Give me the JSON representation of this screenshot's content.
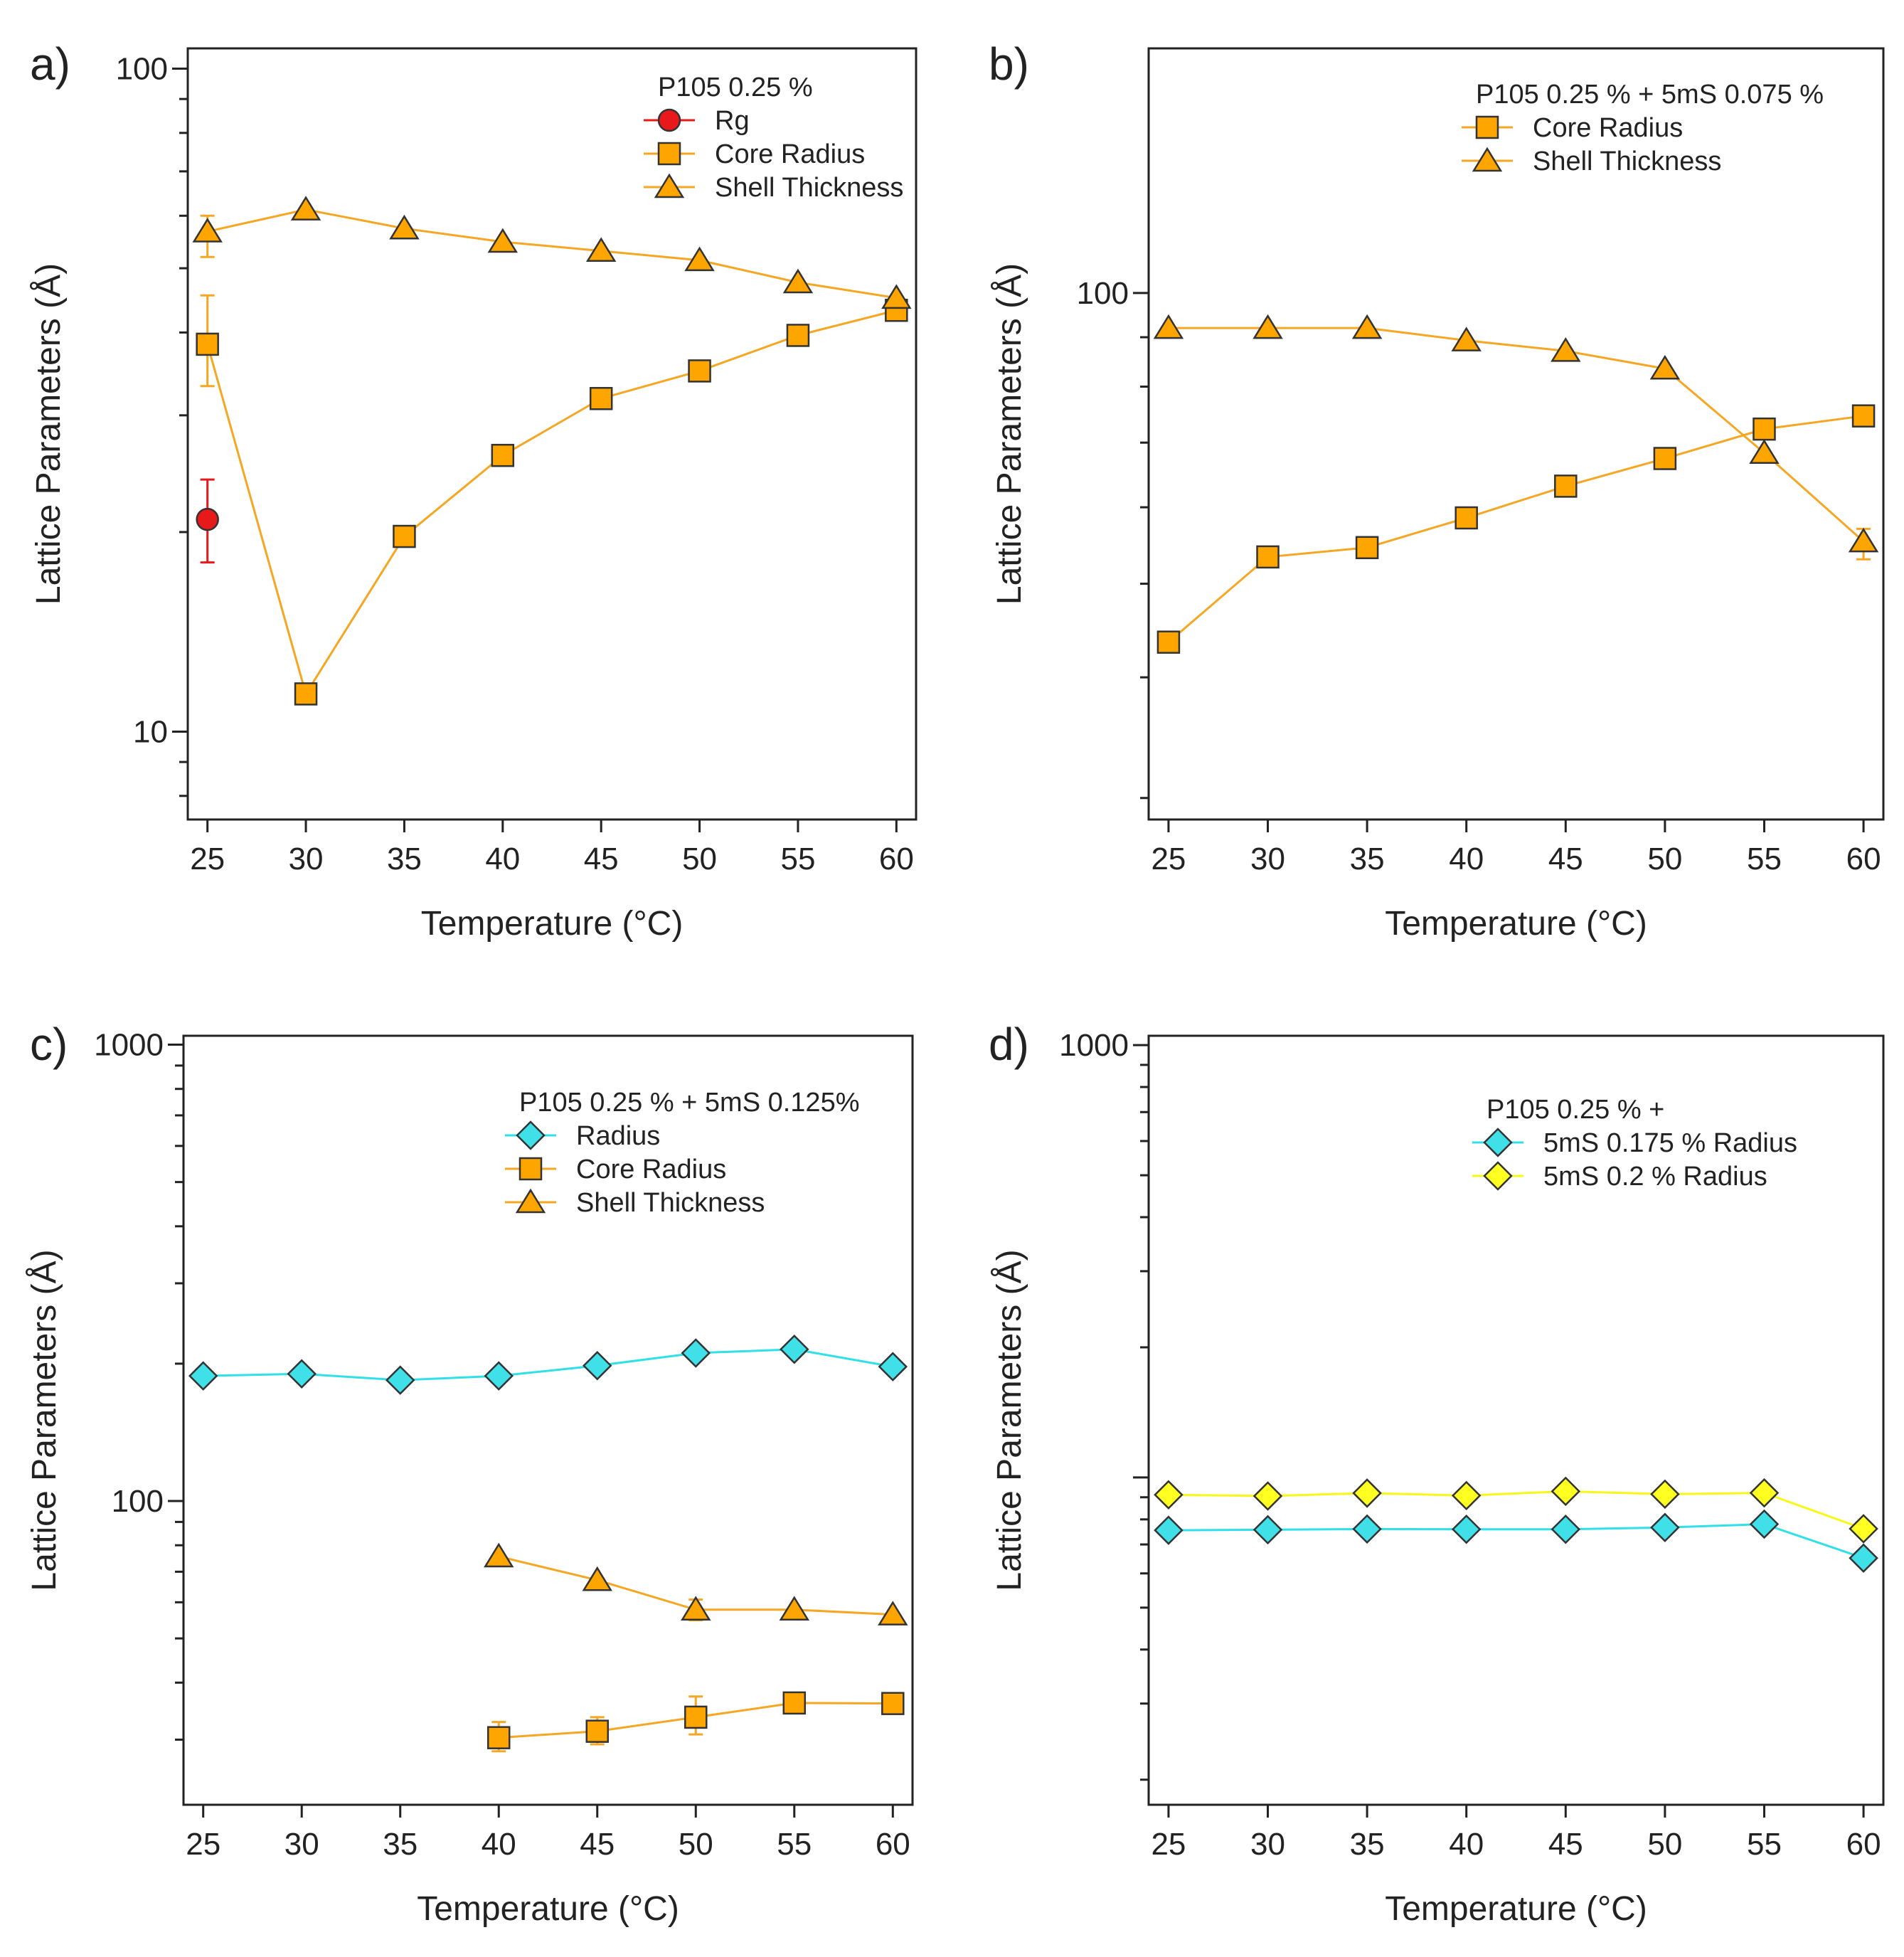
{
  "figure": {
    "title": "",
    "panels": [
      {
        "label": "a)",
        "xlabel": "Temperature (°C)",
        "ylabel": "Lattice Parameters (Å)",
        "legend_title": "P105 0.25 %"
      },
      {
        "label": "b)",
        "xlabel": "Temperature (°C)",
        "ylabel": "Lattice Parameters (Å)",
        "legend_title": "P105 0.25 % + 5mS 0.075 %"
      },
      {
        "label": "c)",
        "xlabel": "Temperature (°C)",
        "ylabel": "Lattice Parameters (Å)",
        "legend_title": "P105 0.25 % + 5mS 0.125%"
      },
      {
        "label": "d)",
        "xlabel": "Temperature (°C)",
        "ylabel": "Lattice Parameters (Å)",
        "legend_title": "P105 0.25 % +"
      }
    ]
  },
  "colors": {
    "orange": "#FFA500",
    "orange_line": "#F5A623",
    "red": "#E8191A",
    "cyan": "#40E0E8",
    "cyan_line": "#30E0E8",
    "yellow": "#FFFF22",
    "yellow_line": "#F8F818",
    "marker_edge": "#333333"
  },
  "chart_data": [
    {
      "type": "line",
      "panel": "a)",
      "title": "",
      "xlabel": "Temperature (°C)",
      "ylabel": "Lattice Parameters (Å)",
      "xlim": [
        24,
        61
      ],
      "ylim": [
        7.37,
        107.3
      ],
      "yscale": "log",
      "x_ticks": [
        25,
        30,
        35,
        40,
        45,
        50,
        55,
        60
      ],
      "y_tick_labels": [
        {
          "value": 100,
          "label": "100"
        },
        {
          "value": 10,
          "label": "10"
        }
      ],
      "legend": {
        "title": "P105 0.25 %",
        "placement": "top-right"
      },
      "series": [
        {
          "name": "Rg",
          "color_key": "red",
          "marker": "circle",
          "x": [
            25
          ],
          "y": [
            20.9
          ],
          "err": [
            [
              18.0,
              24.0
            ]
          ]
        },
        {
          "name": "Core Radius",
          "color_key": "orange",
          "marker": "square",
          "x": [
            25,
            30,
            35,
            40,
            45,
            50,
            55,
            60
          ],
          "y": [
            38.4,
            11.4,
            19.7,
            26.1,
            31.8,
            35.0,
            39.6,
            43.2
          ],
          "err": [
            [
              33.2,
              45.5
            ],
            null,
            null,
            null,
            null,
            null,
            null,
            null
          ]
        },
        {
          "name": "Shell Thickness",
          "color_key": "orange",
          "marker": "triangle",
          "x": [
            25,
            30,
            35,
            40,
            45,
            50,
            55,
            60
          ],
          "y": [
            56.8,
            61.3,
            57.4,
            54.8,
            53.1,
            51.4,
            47.6,
            45.1
          ],
          "err": [
            [
              52.0,
              60.0
            ],
            null,
            null,
            null,
            null,
            null,
            null,
            null
          ]
        }
      ]
    },
    {
      "type": "line",
      "panel": "b)",
      "title": "",
      "xlabel": "Temperature (°C)",
      "ylabel": "Lattice Parameters (Å)",
      "xlim": [
        24,
        61
      ],
      "ylim": [
        28.5,
        179.2
      ],
      "yscale": "log",
      "x_ticks": [
        25,
        30,
        35,
        40,
        45,
        50,
        55,
        60
      ],
      "y_tick_labels": [
        {
          "value": 100,
          "label": "100"
        }
      ],
      "legend": {
        "title": "P105 0.25 % + 5mS 0.075 %",
        "placement": "top-right"
      },
      "series": [
        {
          "name": "Core Radius",
          "color_key": "orange",
          "marker": "square",
          "x": [
            25,
            30,
            35,
            40,
            45,
            50,
            55,
            60
          ],
          "y": [
            43.5,
            53.3,
            54.5,
            58.5,
            63.1,
            67.4,
            72.3,
            74.6
          ],
          "err": [
            null,
            null,
            null,
            null,
            null,
            null,
            null,
            null
          ]
        },
        {
          "name": "Shell Thickness",
          "color_key": "orange",
          "marker": "triangle",
          "x": [
            25,
            30,
            35,
            40,
            45,
            50,
            55,
            60
          ],
          "y": [
            92.0,
            92.0,
            92.0,
            89.3,
            87.1,
            83.5,
            68.3,
            55.3
          ],
          "err": [
            null,
            null,
            null,
            null,
            null,
            null,
            null,
            [
              53.0,
              57.0
            ]
          ]
        }
      ]
    },
    {
      "type": "line",
      "panel": "c)",
      "title": "",
      "xlabel": "Temperature (°C)",
      "ylabel": "Lattice Parameters (Å)",
      "xlim": [
        24,
        61
      ],
      "ylim": [
        21.6,
        1046
      ],
      "yscale": "log",
      "x_ticks": [
        25,
        30,
        35,
        40,
        45,
        50,
        55,
        60
      ],
      "y_tick_labels": [
        {
          "value": 1000,
          "label": "1000"
        },
        {
          "value": 100,
          "label": "100"
        }
      ],
      "legend": {
        "title": "P105 0.25 % + 5mS 0.125%",
        "placement": "top-right"
      },
      "series": [
        {
          "name": "Radius",
          "color_key": "cyan",
          "marker": "diamond",
          "x": [
            25,
            30,
            35,
            40,
            45,
            50,
            55,
            60
          ],
          "y": [
            188,
            190,
            184,
            188,
            198,
            211,
            215,
            197
          ],
          "err": [
            null,
            null,
            null,
            null,
            null,
            null,
            null,
            null
          ]
        },
        {
          "name": "Core Radius",
          "color_key": "orange",
          "marker": "square",
          "x": [
            40,
            45,
            50,
            55,
            60
          ],
          "y": [
            30.3,
            31.3,
            33.6,
            36.1,
            36.0
          ],
          "err": [
            [
              28.3,
              32.8
            ],
            [
              29.3,
              33.6
            ],
            [
              30.8,
              37.3
            ],
            null,
            null
          ]
        },
        {
          "name": "Shell Thickness",
          "color_key": "orange",
          "marker": "triangle",
          "x": [
            40,
            45,
            50,
            55,
            60
          ],
          "y": [
            75.6,
            67.1,
            57.8,
            57.8,
            56.4
          ],
          "err": [
            null,
            null,
            [
              54.8,
              60.8
            ],
            null,
            null
          ]
        }
      ]
    },
    {
      "type": "line",
      "panel": "d)",
      "title": "",
      "xlabel": "Temperature (°C)",
      "ylabel": "Lattice Parameters (Å)",
      "xlim": [
        24,
        61
      ],
      "ylim": [
        17.5,
        1051
      ],
      "yscale": "log",
      "x_ticks": [
        25,
        30,
        35,
        40,
        45,
        50,
        55,
        60
      ],
      "y_tick_labels": [
        {
          "value": 1000,
          "label": "1000"
        }
      ],
      "legend": {
        "title": "P105 0.25 % +",
        "placement": "top-right"
      },
      "series": [
        {
          "name": "5mS 0.175 % Radius",
          "color_key": "cyan",
          "marker": "diamond",
          "x": [
            25,
            30,
            35,
            40,
            45,
            50,
            55,
            60
          ],
          "y": [
            75.5,
            75.7,
            76.0,
            75.9,
            75.9,
            76.6,
            78.0,
            65.1
          ],
          "err": [
            null,
            null,
            null,
            null,
            null,
            null,
            null,
            null
          ]
        },
        {
          "name": "5mS 0.2 % Radius",
          "color_key": "yellow",
          "marker": "diamond",
          "x": [
            25,
            30,
            35,
            40,
            45,
            50,
            55,
            60
          ],
          "y": [
            91.2,
            90.6,
            92.0,
            90.8,
            92.9,
            91.5,
            92.1,
            76.1
          ],
          "err": [
            null,
            null,
            null,
            null,
            null,
            null,
            null,
            null
          ]
        }
      ]
    }
  ]
}
